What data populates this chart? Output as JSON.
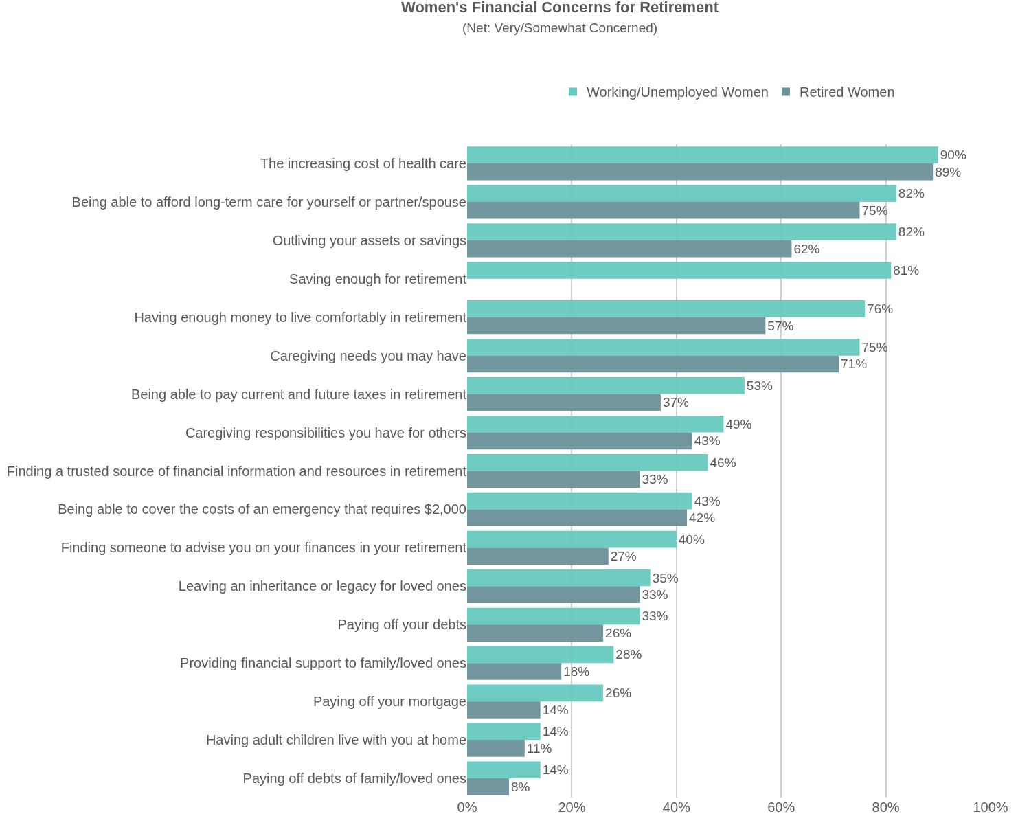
{
  "chart_data": {
    "type": "bar",
    "orientation": "horizontal",
    "title": "Women's Financial Concerns for Retirement",
    "subtitle": "(Net: Very/Somewhat Concerned)",
    "categories": [
      "The increasing cost of health care",
      "Being able to afford long-term care for yourself or partner/spouse",
      "Outliving your assets or savings",
      "Saving enough for retirement",
      "Having enough money to live comfortably in retirement",
      "Caregiving needs you may have",
      "Being able to pay current and future taxes in retirement",
      "Caregiving responsibilities you have for others",
      "Finding a trusted source of financial information and resources in retirement",
      "Being able to cover the costs of an emergency that requires $2,000",
      "Finding someone to advise you on your finances in your retirement",
      "Leaving an inheritance or legacy for loved ones",
      "Paying off your debts",
      "Providing financial support to family/loved ones",
      "Paying off your mortgage",
      "Having adult children live with you at home",
      "Paying off debts of family/loved ones"
    ],
    "series": [
      {
        "name": "Working/Unemployed Women",
        "color": "#66c9c0",
        "values": [
          90,
          82,
          82,
          81,
          76,
          75,
          53,
          49,
          46,
          43,
          40,
          35,
          33,
          28,
          26,
          14,
          14
        ],
        "value_labels": [
          "90%",
          "82%",
          "82%",
          "81%",
          "76%",
          "75%",
          "53%",
          "49%",
          "46%",
          "43%",
          "40%",
          "35%",
          "33%",
          "28%",
          "26%",
          "14%",
          "14%"
        ]
      },
      {
        "name": "Retired Women",
        "color": "#6b9199",
        "values": [
          89,
          75,
          62,
          null,
          57,
          71,
          37,
          43,
          33,
          42,
          27,
          33,
          26,
          18,
          14,
          11,
          8
        ],
        "value_labels": [
          "89%",
          "75%",
          "62%",
          null,
          "57%",
          "71%",
          "37%",
          "43%",
          "33%",
          "42%",
          "27%",
          "33%",
          "26%",
          "18%",
          "14%",
          "11%",
          "8%"
        ]
      }
    ],
    "xlim": [
      0,
      100
    ],
    "xticks": [
      {
        "value": 0,
        "label": "0%"
      },
      {
        "value": 20,
        "label": "20%"
      },
      {
        "value": 40,
        "label": "40%"
      },
      {
        "value": 60,
        "label": "60%"
      },
      {
        "value": 80,
        "label": "80%"
      },
      {
        "value": 100,
        "label": "100%"
      }
    ],
    "grid": "x",
    "legend": "top"
  }
}
